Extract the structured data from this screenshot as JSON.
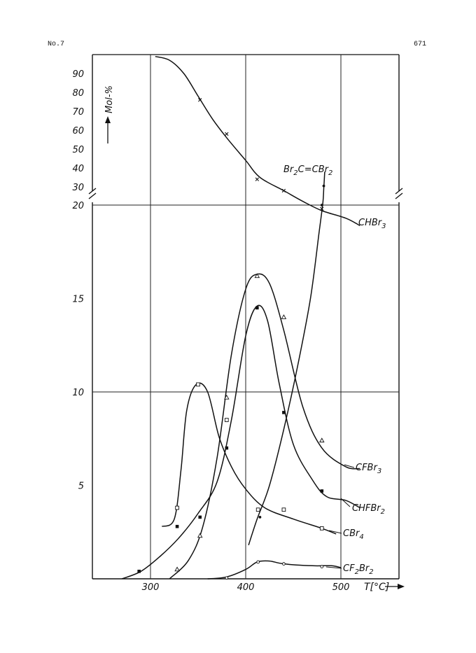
{
  "header": {
    "left": "No.7",
    "right": "671"
  },
  "chart_data": {
    "type": "line",
    "xlabel": "T[°C]",
    "ylabel": "Mol-%",
    "xlim": [
      240,
      565
    ],
    "ylim_lower": [
      0,
      20
    ],
    "ylim_upper": [
      27,
      99
    ],
    "x_ticks": [
      300,
      400,
      500
    ],
    "y_ticks_lower": [
      5,
      10,
      15,
      20
    ],
    "y_ticks_upper": [
      30,
      40,
      50,
      60,
      70,
      80,
      90
    ],
    "grid": true,
    "series": [
      {
        "name": "CHBr3",
        "label_parts": [
          "CHBr",
          "3"
        ],
        "axis": "mixed",
        "marker": "x",
        "curve": [
          [
            305,
            99
          ],
          [
            320,
            97
          ],
          [
            335,
            90
          ],
          [
            350,
            78
          ],
          [
            365,
            66
          ],
          [
            380,
            56
          ],
          [
            400,
            44
          ],
          [
            415,
            35
          ],
          [
            440,
            28
          ],
          [
            460,
            20.2
          ],
          [
            480,
            19.7
          ],
          [
            505,
            19.3
          ],
          [
            520,
            18.9
          ]
        ],
        "points": [
          [
            352,
            76
          ],
          [
            380,
            58
          ],
          [
            412,
            34
          ],
          [
            440,
            28
          ],
          [
            480,
            19.8
          ]
        ]
      },
      {
        "name": "Br2C=CBr2",
        "label_parts": [
          "Br",
          "2",
          "C=CBr",
          "2"
        ],
        "axis": "mixed",
        "marker": "dot",
        "curve": [
          [
            403,
            1.8
          ],
          [
            412,
            3.2
          ],
          [
            425,
            5
          ],
          [
            440,
            8
          ],
          [
            455,
            11.5
          ],
          [
            468,
            15
          ],
          [
            477,
            18.5
          ],
          [
            481,
            20.1
          ],
          [
            482,
            29
          ],
          [
            483,
            38
          ]
        ],
        "points": [
          [
            415,
            3.3
          ],
          [
            480,
            20
          ],
          [
            482,
            30.5
          ]
        ]
      },
      {
        "name": "CFBr3",
        "label_parts": [
          "CFBr",
          "3"
        ],
        "axis": "lower",
        "marker": "triangle",
        "curve": [
          [
            320,
            0
          ],
          [
            340,
            1.0
          ],
          [
            355,
            2.8
          ],
          [
            370,
            6.5
          ],
          [
            385,
            12
          ],
          [
            400,
            15.5
          ],
          [
            412,
            16.3
          ],
          [
            425,
            15.8
          ],
          [
            440,
            13.3
          ],
          [
            460,
            9.2
          ],
          [
            480,
            7.0
          ],
          [
            505,
            6.0
          ],
          [
            520,
            5.9
          ]
        ],
        "points": [
          [
            328,
            0.5
          ],
          [
            352,
            2.3
          ],
          [
            380,
            9.7
          ],
          [
            412,
            16.2
          ],
          [
            440,
            14
          ],
          [
            480,
            7.4
          ]
        ]
      },
      {
        "name": "CHFBr2",
        "label_parts": [
          "CHFBr",
          "2"
        ],
        "axis": "lower",
        "marker": "square-filled",
        "curve": [
          [
            270,
            0
          ],
          [
            290,
            0.4
          ],
          [
            310,
            1.2
          ],
          [
            330,
            2.2
          ],
          [
            350,
            3.5
          ],
          [
            370,
            5.2
          ],
          [
            385,
            8.5
          ],
          [
            400,
            13.0
          ],
          [
            412,
            14.6
          ],
          [
            423,
            13.8
          ],
          [
            435,
            10.5
          ],
          [
            450,
            7.2
          ],
          [
            470,
            5.3
          ],
          [
            485,
            4.4
          ],
          [
            505,
            4.2
          ],
          [
            520,
            3.8
          ]
        ],
        "points": [
          [
            288,
            0.4
          ],
          [
            328,
            2.8
          ],
          [
            352,
            3.3
          ],
          [
            380,
            7.0
          ],
          [
            412,
            14.5
          ],
          [
            440,
            8.9
          ],
          [
            480,
            4.7
          ]
        ]
      },
      {
        "name": "CBr4",
        "label_parts": [
          "CBr",
          "4"
        ],
        "axis": "lower",
        "marker": "square-open",
        "curve": [
          [
            312,
            2.8
          ],
          [
            325,
            3.2
          ],
          [
            332,
            5.8
          ],
          [
            338,
            9.0
          ],
          [
            348,
            10.4
          ],
          [
            360,
            10.0
          ],
          [
            372,
            7.6
          ],
          [
            385,
            6.0
          ],
          [
            400,
            4.8
          ],
          [
            420,
            3.8
          ],
          [
            450,
            3.2
          ],
          [
            480,
            2.7
          ],
          [
            495,
            2.4
          ]
        ],
        "points": [
          [
            328,
            3.8
          ],
          [
            350,
            10.4
          ],
          [
            380,
            8.5
          ],
          [
            413,
            3.7
          ],
          [
            440,
            3.7
          ],
          [
            480,
            2.7
          ]
        ]
      },
      {
        "name": "CF2Br2",
        "label_parts": [
          "CF",
          "2",
          "Br",
          "2"
        ],
        "axis": "lower",
        "marker": "circle-open",
        "curve": [
          [
            360,
            0
          ],
          [
            380,
            0.1
          ],
          [
            400,
            0.5
          ],
          [
            412,
            0.9
          ],
          [
            425,
            0.95
          ],
          [
            440,
            0.8
          ],
          [
            470,
            0.7
          ],
          [
            490,
            0.7
          ],
          [
            500,
            0.6
          ]
        ],
        "points": [
          [
            380,
            0.05
          ],
          [
            413,
            0.9
          ],
          [
            440,
            0.8
          ],
          [
            480,
            0.65
          ]
        ]
      }
    ]
  }
}
